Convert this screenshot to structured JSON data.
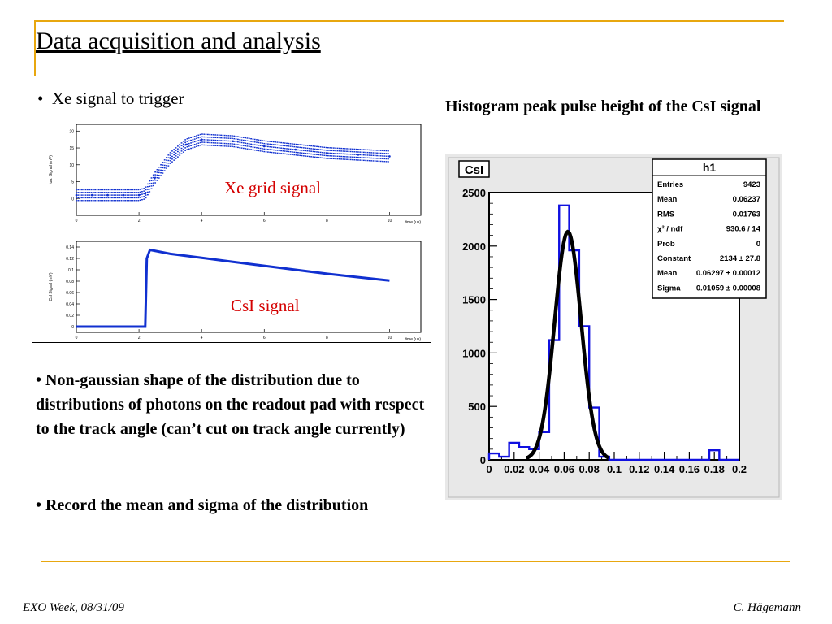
{
  "slide": {
    "title": "Data acquisition and analysis",
    "bullet1": "Xe signal to trigger",
    "histogram_caption": "Histogram peak pulse height of the CsI signal",
    "bullet2": "Non-gaussian shape of the distribution due to distributions of photons on the readout pad with respect to the track angle (can’t cut on track angle currently)",
    "bullet3": "Record the mean and sigma of the distribution",
    "footer_left": "EXO Week, 08/31/09",
    "footer_right": "C. Hägemann",
    "accent_color": "#e8a70f"
  },
  "chart_data": [
    {
      "type": "scatter",
      "annotation": "Xe grid signal",
      "xlabel": "time (us)",
      "ylabel": "Ion. Signal (mV)",
      "xlim": [
        0,
        11
      ],
      "ylim": [
        -5,
        22
      ],
      "xticks": [
        "0",
        "2",
        "4",
        "6",
        "8",
        "10"
      ],
      "yticks": [
        "0",
        "5",
        "10",
        "15",
        "20"
      ],
      "series_color": "#1030d0",
      "x": [
        0,
        0.5,
        1,
        1.5,
        2,
        2.2,
        2.5,
        3,
        3.5,
        4,
        5,
        6,
        7,
        8,
        9,
        10
      ],
      "y": [
        1,
        1,
        1,
        1,
        1,
        1.5,
        6,
        12,
        16,
        17.5,
        17,
        15.5,
        14.5,
        13.5,
        13,
        12.5
      ]
    },
    {
      "type": "line",
      "annotation": "CsI signal",
      "xlabel": "time (us)",
      "ylabel": "CsI Signal (mV)",
      "xlim": [
        0,
        11
      ],
      "ylim": [
        -0.01,
        0.15
      ],
      "xticks": [
        "0",
        "2",
        "4",
        "6",
        "8",
        "10"
      ],
      "yticks": [
        "0",
        "0.02",
        "0.04",
        "0.06",
        "0.08",
        "0.1",
        "0.12",
        "0.14"
      ],
      "series_color": "#1030d0",
      "x": [
        0,
        2.2,
        2.25,
        2.35,
        3,
        4,
        5,
        6,
        7,
        8,
        9,
        10
      ],
      "y": [
        0,
        0,
        0.12,
        0.135,
        0.128,
        0.121,
        0.114,
        0.107,
        0.1,
        0.093,
        0.087,
        0.081
      ]
    },
    {
      "type": "bar",
      "title": "CsI",
      "xlim": [
        0,
        0.2
      ],
      "ylim": [
        0,
        2500
      ],
      "xticks": [
        "0",
        "0.02",
        "0.04",
        "0.06",
        "0.08",
        "0.1",
        "0.12",
        "0.14",
        "0.16",
        "0.18",
        "0.2"
      ],
      "yticks": [
        "0",
        "500",
        "1000",
        "1500",
        "2000",
        "2500"
      ],
      "bin_width": 0.008,
      "bin_edges_start": 0,
      "values": [
        60,
        30,
        160,
        120,
        100,
        260,
        1120,
        2380,
        1960,
        1250,
        490,
        30,
        0,
        0,
        0,
        0,
        0,
        0,
        0,
        0,
        0,
        0,
        90,
        0,
        0
      ],
      "fit": {
        "type": "gaussian",
        "constant": 2134,
        "mean": 0.06297,
        "sigma": 0.01059
      },
      "stats_box": {
        "title": "h1",
        "rows": [
          {
            "label": "Entries",
            "value": "9423"
          },
          {
            "label": "Mean",
            "value": "0.06237"
          },
          {
            "label": "RMS",
            "value": "0.01763"
          },
          {
            "label": "χ² / ndf",
            "value": "930.6 / 14"
          },
          {
            "label": "Prob",
            "value": "0"
          },
          {
            "label": "Constant",
            "value": "2134 ± 27.8"
          },
          {
            "label": "Mean",
            "value": "0.06297 ± 0.00012"
          },
          {
            "label": "Sigma",
            "value": "0.01059 ± 0.00008"
          }
        ]
      },
      "series_color": "#1010e0",
      "fit_color": "#000000"
    }
  ]
}
